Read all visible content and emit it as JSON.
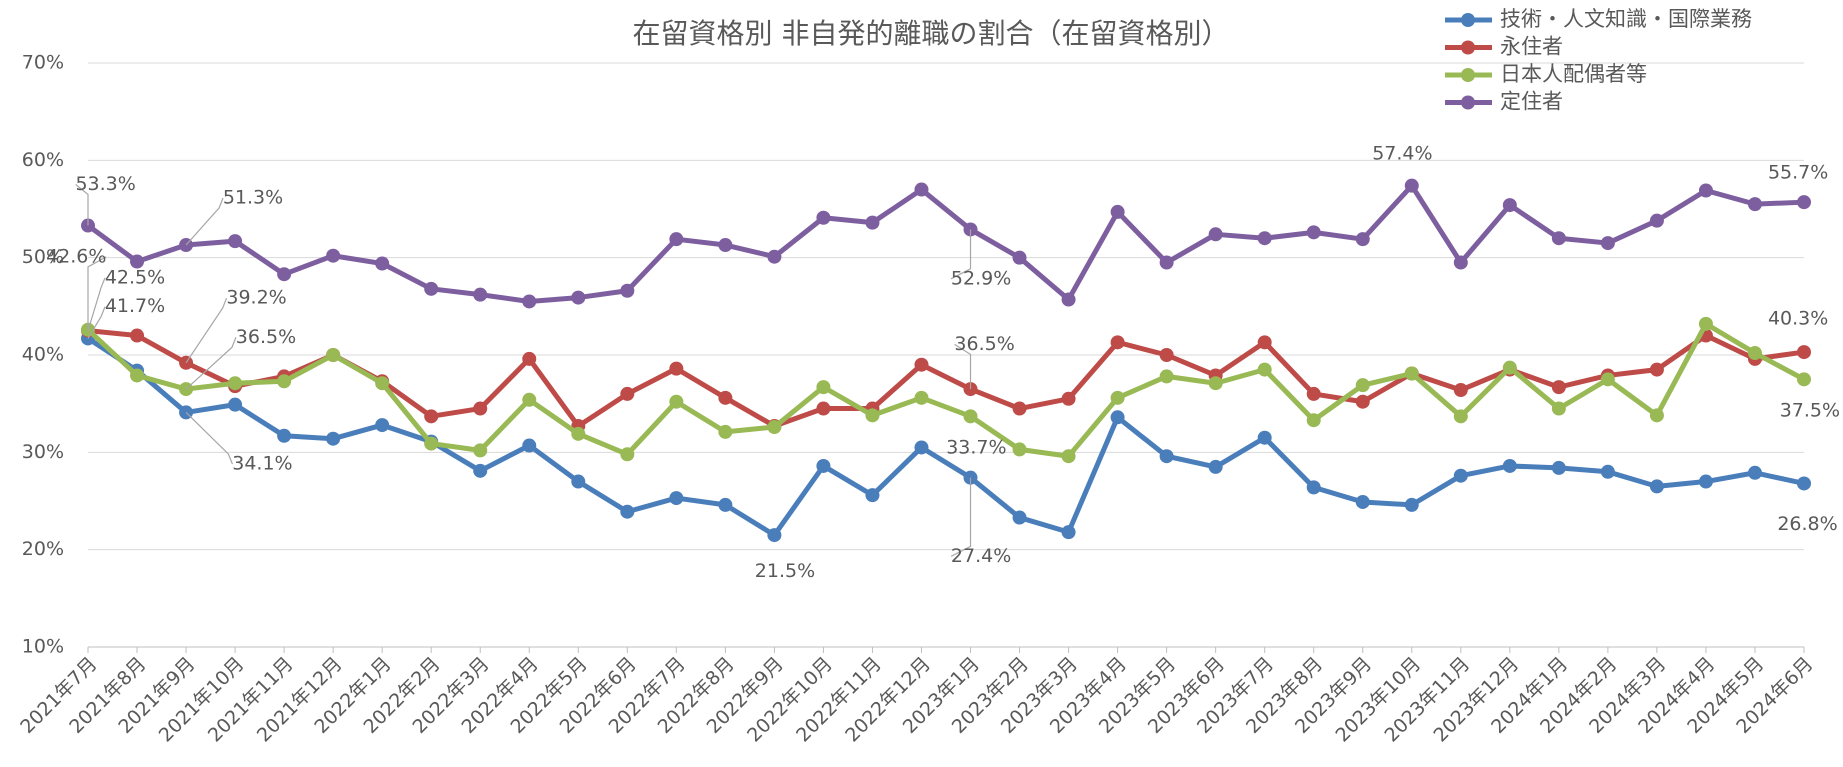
{
  "chart_data": {
    "type": "line",
    "title": "在留資格別 非自発的離職の割合（在留資格別）",
    "categories": [
      "2021年7月",
      "2021年8月",
      "2021年9月",
      "2021年10月",
      "2021年11月",
      "2021年12月",
      "2022年1月",
      "2022年2月",
      "2022年3月",
      "2022年4月",
      "2022年5月",
      "2022年6月",
      "2022年7月",
      "2022年8月",
      "2022年9月",
      "2022年10月",
      "2022年11月",
      "2022年12月",
      "2023年1月",
      "2023年2月",
      "2023年3月",
      "2023年4月",
      "2023年5月",
      "2023年6月",
      "2023年7月",
      "2023年8月",
      "2023年9月",
      "2023年10月",
      "2023年11月",
      "2023年12月",
      "2024年1月",
      "2024年2月",
      "2024年3月",
      "2024年4月",
      "2024年5月",
      "2024年6月"
    ],
    "series": [
      {
        "name": "技術・人文知識・国際業務",
        "color": "#4a7ebb",
        "values": [
          41.7,
          38.4,
          34.1,
          34.9,
          31.7,
          31.4,
          32.8,
          31.1,
          28.1,
          30.7,
          27.0,
          23.9,
          25.3,
          24.6,
          21.5,
          28.6,
          25.6,
          30.5,
          27.4,
          23.3,
          21.8,
          33.6,
          29.6,
          28.5,
          31.5,
          26.4,
          24.9,
          24.6,
          27.6,
          28.6,
          28.4,
          28.0,
          26.5,
          27.0,
          27.9,
          26.8
        ],
        "value_labels": [
          "41.7%",
          null,
          "34.1%",
          null,
          null,
          null,
          null,
          null,
          null,
          null,
          null,
          null,
          null,
          null,
          "21.5%",
          null,
          null,
          null,
          "27.4%",
          null,
          null,
          null,
          null,
          null,
          null,
          null,
          null,
          null,
          null,
          null,
          null,
          null,
          null,
          null,
          null,
          "26.8%"
        ]
      },
      {
        "name": "永住者",
        "color": "#be4b48",
        "values": [
          42.5,
          42.0,
          39.2,
          36.8,
          37.8,
          40.0,
          37.3,
          33.7,
          34.5,
          39.6,
          32.7,
          36.0,
          38.6,
          35.6,
          32.7,
          34.5,
          34.5,
          39.0,
          36.5,
          34.5,
          35.5,
          41.3,
          40.0,
          37.9,
          41.3,
          36.0,
          35.2,
          38.1,
          36.4,
          38.5,
          36.7,
          37.9,
          38.5,
          42.0,
          39.6,
          40.3
        ],
        "value_labels": [
          "42.5%",
          null,
          "39.2%",
          null,
          null,
          null,
          null,
          null,
          null,
          null,
          null,
          null,
          null,
          null,
          null,
          null,
          null,
          null,
          "36.5%",
          null,
          null,
          null,
          null,
          null,
          null,
          null,
          null,
          null,
          null,
          null,
          null,
          null,
          null,
          null,
          null,
          "40.3%"
        ]
      },
      {
        "name": "日本人配偶者等",
        "color": "#98b954",
        "values": [
          42.6,
          37.9,
          36.5,
          37.1,
          37.3,
          40.0,
          37.1,
          30.9,
          30.2,
          35.4,
          31.9,
          29.8,
          35.2,
          32.1,
          32.6,
          36.7,
          33.8,
          35.6,
          33.7,
          30.3,
          29.6,
          35.6,
          37.8,
          37.1,
          38.5,
          33.3,
          36.9,
          38.1,
          33.7,
          38.7,
          34.5,
          37.5,
          33.8,
          43.2,
          40.2,
          37.5
        ],
        "value_labels": [
          "42.6%",
          null,
          "36.5%",
          null,
          null,
          null,
          null,
          null,
          null,
          null,
          null,
          null,
          null,
          null,
          null,
          null,
          null,
          null,
          "33.7%",
          null,
          null,
          null,
          null,
          null,
          null,
          null,
          null,
          null,
          null,
          null,
          null,
          null,
          null,
          null,
          null,
          "37.5%"
        ]
      },
      {
        "name": "定住者",
        "color": "#7d5fa0",
        "values": [
          53.3,
          49.6,
          51.3,
          51.7,
          48.3,
          50.2,
          49.4,
          46.8,
          46.2,
          45.5,
          45.9,
          46.6,
          51.9,
          51.3,
          50.1,
          54.1,
          53.6,
          57.0,
          52.9,
          50.0,
          45.7,
          54.7,
          49.5,
          52.4,
          52.0,
          52.6,
          51.9,
          57.4,
          49.5,
          55.4,
          52.0,
          51.5,
          53.8,
          56.9,
          55.5,
          55.7
        ],
        "value_labels": [
          "53.3%",
          null,
          "51.3%",
          null,
          null,
          null,
          null,
          null,
          null,
          null,
          null,
          null,
          null,
          null,
          null,
          null,
          null,
          null,
          "52.9%",
          null,
          null,
          null,
          null,
          null,
          null,
          null,
          null,
          "57.4%",
          null,
          null,
          null,
          null,
          null,
          null,
          null,
          "55.7%"
        ]
      }
    ],
    "ylim": [
      10,
      70
    ],
    "yticks": [
      {
        "value": 10,
        "label": "10%"
      },
      {
        "value": 20,
        "label": "20%"
      },
      {
        "value": 30,
        "label": "30%"
      },
      {
        "value": 40,
        "label": "40%"
      },
      {
        "value": 50,
        "label": "50%"
      },
      {
        "value": 60,
        "label": "60%"
      },
      {
        "value": 70,
        "label": "70%"
      }
    ],
    "grid": true,
    "legend": "top-right"
  }
}
